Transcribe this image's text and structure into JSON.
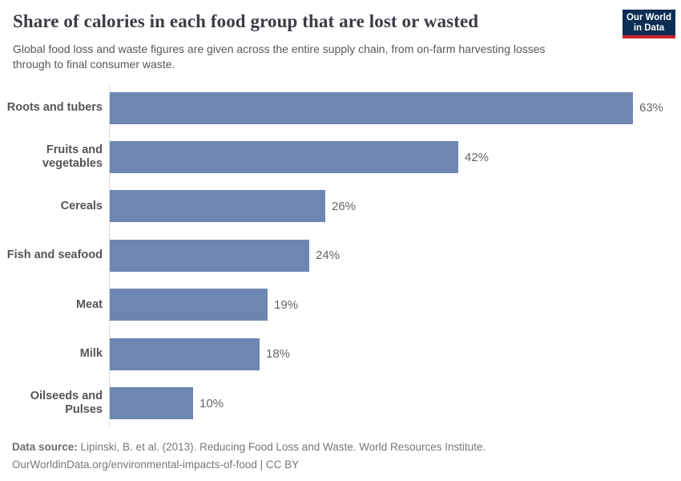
{
  "header": {
    "title": "Share of calories in each food group that are lost or wasted",
    "subtitle": "Global food loss and waste figures are given across the entire supply chain, from on-farm harvesting losses through to final consumer waste.",
    "logo": {
      "line1": "Our World",
      "line2": "in Data",
      "bg_color": "#0d2d54",
      "accent_color": "#cc2529",
      "text_color": "#ffffff"
    }
  },
  "chart_data": {
    "type": "bar",
    "orientation": "horizontal",
    "title": "Share of calories in each food group that are lost or wasted",
    "categories": [
      "Roots and tubers",
      "Fruits and vegetables",
      "Cereals",
      "Fish and seafood",
      "Meat",
      "Milk",
      "Oilseeds and Pulses"
    ],
    "values": [
      63,
      42,
      26,
      24,
      19,
      18,
      10
    ],
    "value_labels": [
      "63%",
      "42%",
      "26%",
      "24%",
      "19%",
      "18%",
      "10%"
    ],
    "unit": "%",
    "xlabel": "",
    "ylabel": "",
    "xlim": [
      0,
      63
    ],
    "grid": false,
    "legend": null,
    "bar_color": "#6e87b2",
    "axis_color": "#dcdcdc",
    "label_color": "#555555",
    "value_label_color": "#666666"
  },
  "footer": {
    "source_label": "Data source:",
    "source_text": " Lipinski, B. et al. (2013). Reducing Food Loss and Waste. World Resources Institute.",
    "link_line": "OurWorldinData.org/environmental-impacts-of-food | CC BY"
  }
}
